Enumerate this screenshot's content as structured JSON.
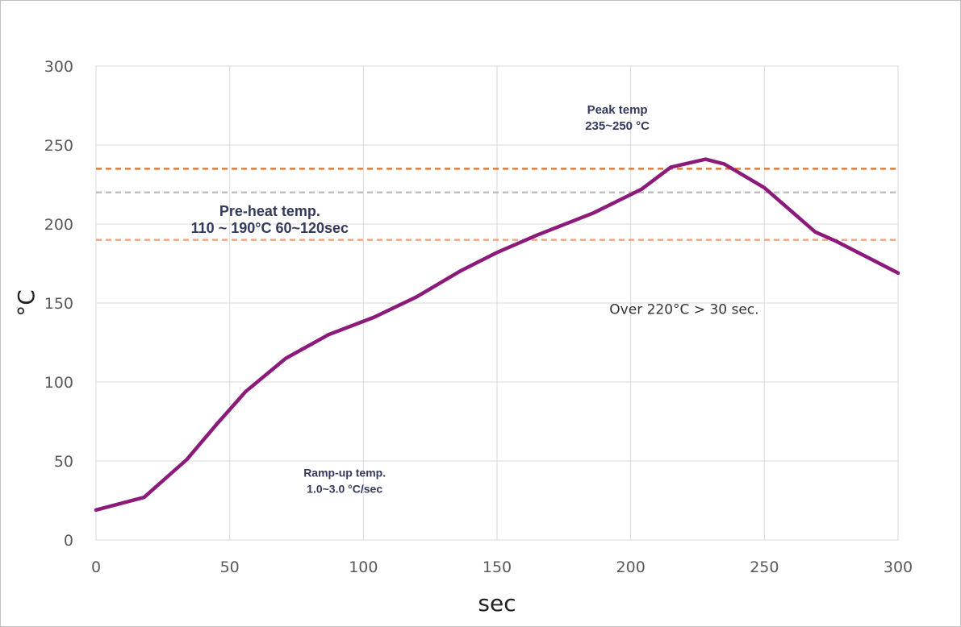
{
  "chart_data": {
    "type": "line",
    "title": "",
    "xlabel": "sec",
    "ylabel": "°C",
    "xlim": [
      0,
      300
    ],
    "ylim": [
      0,
      300
    ],
    "xticks": [
      0,
      50,
      100,
      150,
      200,
      250,
      300
    ],
    "yticks": [
      0,
      50,
      100,
      150,
      200,
      250,
      300
    ],
    "grid": true,
    "legend": "none",
    "series": [
      {
        "color": "#8b1a7a",
        "x": [
          0,
          18,
          34,
          45,
          56,
          71,
          87,
          104,
          120,
          136,
          150,
          165,
          186,
          204,
          215,
          228,
          235,
          250,
          269,
          277,
          300
        ],
        "y": [
          19,
          27,
          51,
          73,
          94,
          115,
          130,
          141,
          154,
          170,
          182,
          193,
          207,
          222,
          236,
          241,
          238,
          223,
          195,
          189,
          169
        ]
      }
    ],
    "reference_lines": [
      {
        "y": 235,
        "color": "#e07a35"
      },
      {
        "y": 220,
        "color": "#bfbfbf"
      },
      {
        "y": 190,
        "color": "#f2a481"
      }
    ],
    "annotations": [
      {
        "lines": [
          "Peak temp",
          "235~250 °C"
        ],
        "x": 195,
        "y": 270
      },
      {
        "lines": [
          "Pre-heat temp.",
          "110 ~ 190°C 60~120sec"
        ],
        "x": 65,
        "y": 205
      },
      {
        "lines": [
          "Over 220°C > 30 sec."
        ],
        "x": 220,
        "y": 143
      },
      {
        "lines": [
          "Ramp-up temp.",
          "1.0~3.0 °C/sec"
        ],
        "x": 93,
        "y": 40
      }
    ]
  }
}
